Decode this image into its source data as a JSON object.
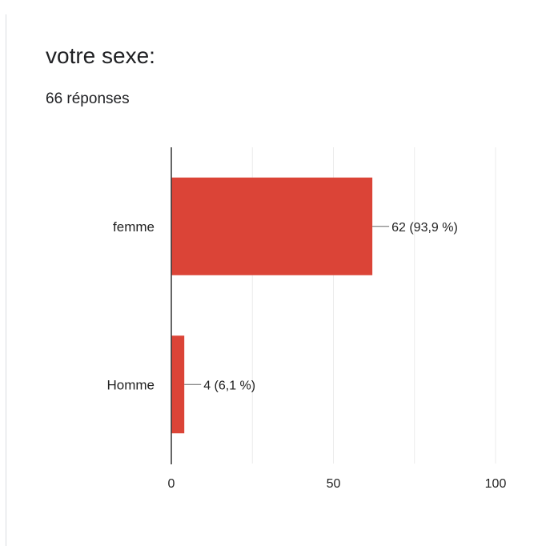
{
  "question": {
    "title": "votre sexe:",
    "response_count": "66 réponses"
  },
  "chart_data": {
    "type": "bar",
    "orientation": "horizontal",
    "categories": [
      "femme",
      "Homme"
    ],
    "values": [
      62,
      4
    ],
    "data_labels": [
      "62 (93,9 %)",
      "4 (6,1 %)"
    ],
    "x_ticks": [
      "0",
      "50",
      "100"
    ],
    "xlim": [
      0,
      100
    ],
    "grid": true,
    "bar_color": "#db4437",
    "grid_color": "#ebebeb",
    "axis_color": "#333333"
  }
}
